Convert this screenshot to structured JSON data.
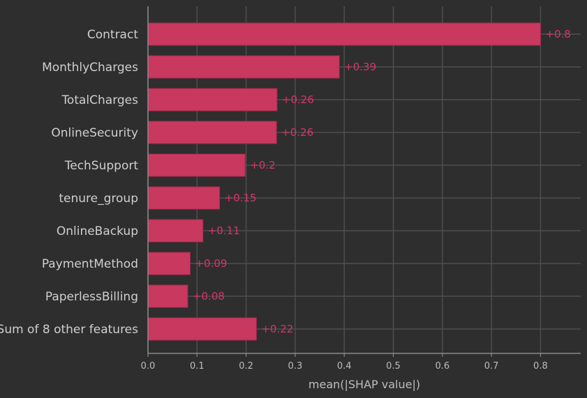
{
  "chart_data": {
    "type": "bar",
    "orientation": "horizontal",
    "title": "",
    "xlabel": "mean(|SHAP value|)",
    "ylabel": "",
    "xlim": [
      0,
      0.88
    ],
    "x_ticks": [
      "0.0",
      "0.1",
      "0.2",
      "0.3",
      "0.4",
      "0.5",
      "0.6",
      "0.7",
      "0.8"
    ],
    "grid": true,
    "bar_color": "#c9385f",
    "label_color": "#d8356a",
    "background": "#2e2e2e",
    "categories": [
      "Contract",
      "MonthlyCharges",
      "TotalCharges",
      "OnlineSecurity",
      "TechSupport",
      "tenure_group",
      "OnlineBackup",
      "PaymentMethod",
      "PaperlessBilling",
      "Sum of 8 other features"
    ],
    "values": [
      0.8,
      0.39,
      0.263,
      0.262,
      0.198,
      0.146,
      0.112,
      0.086,
      0.081,
      0.221
    ],
    "value_labels": [
      "+0.8",
      "+0.39",
      "+0.26",
      "+0.26",
      "+0.2",
      "+0.15",
      "+0.11",
      "+0.09",
      "+0.08",
      "+0.22"
    ]
  }
}
